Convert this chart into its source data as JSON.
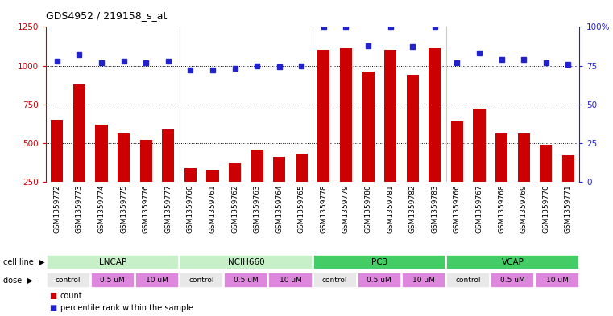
{
  "title": "GDS4952 / 219158_s_at",
  "samples": [
    "GSM1359772",
    "GSM1359773",
    "GSM1359774",
    "GSM1359775",
    "GSM1359776",
    "GSM1359777",
    "GSM1359760",
    "GSM1359761",
    "GSM1359762",
    "GSM1359763",
    "GSM1359764",
    "GSM1359765",
    "GSM1359778",
    "GSM1359779",
    "GSM1359780",
    "GSM1359781",
    "GSM1359782",
    "GSM1359783",
    "GSM1359766",
    "GSM1359767",
    "GSM1359768",
    "GSM1359769",
    "GSM1359770",
    "GSM1359771"
  ],
  "counts": [
    650,
    880,
    620,
    560,
    520,
    590,
    340,
    330,
    370,
    460,
    410,
    430,
    1100,
    1110,
    960,
    1100,
    940,
    1110,
    640,
    720,
    560,
    560,
    490,
    420
  ],
  "percentile_ranks": [
    78,
    82,
    77,
    78,
    77,
    78,
    72,
    72,
    73,
    75,
    74,
    75,
    100,
    100,
    88,
    100,
    87,
    100,
    77,
    83,
    79,
    79,
    77,
    76
  ],
  "cell_line_groups": [
    {
      "name": "LNCAP",
      "start": 0,
      "end": 6,
      "color": "#c8f0c8"
    },
    {
      "name": "NCIH660",
      "start": 6,
      "end": 12,
      "color": "#c8f0c8"
    },
    {
      "name": "PC3",
      "start": 12,
      "end": 18,
      "color": "#44cc66"
    },
    {
      "name": "VCAP",
      "start": 18,
      "end": 24,
      "color": "#44cc66"
    }
  ],
  "dose_groups": [
    {
      "name": "control",
      "start": 0,
      "end": 2,
      "color": "#e8e8e8"
    },
    {
      "name": "0.5 uM",
      "start": 2,
      "end": 4,
      "color": "#dd88dd"
    },
    {
      "name": "10 uM",
      "start": 4,
      "end": 6,
      "color": "#dd88dd"
    },
    {
      "name": "control",
      "start": 6,
      "end": 8,
      "color": "#e8e8e8"
    },
    {
      "name": "0.5 uM",
      "start": 8,
      "end": 10,
      "color": "#dd88dd"
    },
    {
      "name": "10 uM",
      "start": 10,
      "end": 12,
      "color": "#dd88dd"
    },
    {
      "name": "control",
      "start": 12,
      "end": 14,
      "color": "#e8e8e8"
    },
    {
      "name": "0.5 uM",
      "start": 14,
      "end": 16,
      "color": "#dd88dd"
    },
    {
      "name": "10 uM",
      "start": 16,
      "end": 18,
      "color": "#dd88dd"
    },
    {
      "name": "control",
      "start": 18,
      "end": 20,
      "color": "#e8e8e8"
    },
    {
      "name": "0.5 uM",
      "start": 20,
      "end": 22,
      "color": "#dd88dd"
    },
    {
      "name": "10 uM",
      "start": 22,
      "end": 24,
      "color": "#dd88dd"
    }
  ],
  "bar_color": "#CC0000",
  "dot_color": "#2222CC",
  "ylim_left": [
    250,
    1250
  ],
  "ylim_right": [
    0,
    100
  ],
  "yticks_left": [
    250,
    500,
    750,
    1000,
    1250
  ],
  "yticks_right": [
    0,
    25,
    50,
    75,
    100
  ],
  "grid_values": [
    500,
    750,
    1000
  ],
  "group_boundaries": [
    6,
    12,
    18
  ],
  "n_samples": 24,
  "legend_items": [
    {
      "color": "#CC0000",
      "label": "count"
    },
    {
      "color": "#2222CC",
      "label": "percentile rank within the sample"
    }
  ]
}
